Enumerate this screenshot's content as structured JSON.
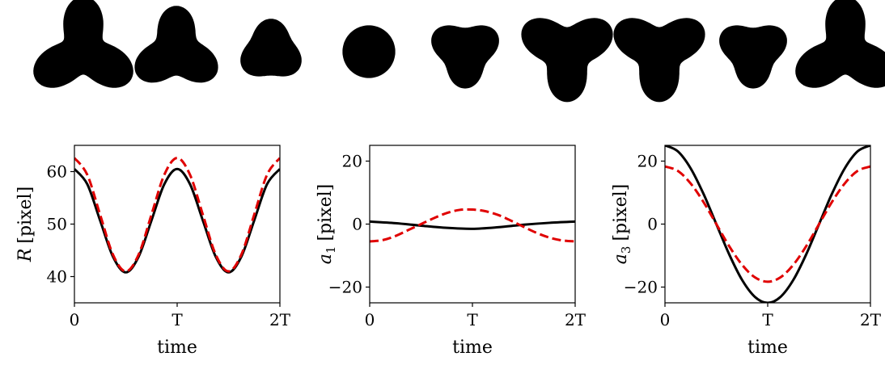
{
  "shapes": {
    "count": 9,
    "color": "#000000",
    "description_values": {
      "R": [
        60.5,
        54,
        44,
        40.8,
        47,
        58,
        58,
        47,
        60.5
      ],
      "a3": [
        25,
        17,
        7,
        0,
        -10,
        -20,
        -20,
        -10,
        25
      ]
    }
  },
  "chart_data": [
    {
      "type": "line",
      "xlabel": "time",
      "ylabel": "R [pixel]",
      "ylabel_symbol": "R",
      "ylabel_unit": "[pixel]",
      "xlim": [
        0,
        2
      ],
      "ylim": [
        35,
        65
      ],
      "xticks": [
        0,
        1,
        2
      ],
      "xtick_labels": [
        "0",
        "T",
        "2T"
      ],
      "yticks": [
        40,
        50,
        60
      ],
      "ytick_labels": [
        "40",
        "50",
        "60"
      ],
      "grid": false,
      "series": [
        {
          "color": "#000000",
          "dash": "solid",
          "x": [
            0,
            0.125,
            0.25,
            0.375,
            0.5,
            0.625,
            0.75,
            0.875,
            1,
            1.125,
            1.25,
            1.375,
            1.5,
            1.625,
            1.75,
            1.875,
            2
          ],
          "values": [
            60.5,
            57.6,
            50.7,
            43.8,
            40.8,
            43.8,
            50.7,
            57.6,
            60.5,
            57.6,
            50.7,
            43.8,
            40.8,
            43.8,
            50.7,
            57.6,
            60.5
          ]
        },
        {
          "color": "#e00000",
          "dash": "dashed",
          "x": [
            0,
            0.125,
            0.25,
            0.375,
            0.5,
            0.625,
            0.75,
            0.875,
            1,
            1.125,
            1.25,
            1.375,
            1.5,
            1.625,
            1.75,
            1.875,
            2
          ],
          "values": [
            62.6,
            59.4,
            51.8,
            44.2,
            41.0,
            44.2,
            51.8,
            59.4,
            62.6,
            59.4,
            51.8,
            44.2,
            41.0,
            44.2,
            51.8,
            59.4,
            62.6
          ]
        }
      ]
    },
    {
      "type": "line",
      "xlabel": "time",
      "ylabel": "a1 [pixel]",
      "ylabel_symbol": "a",
      "ylabel_sub": "1",
      "ylabel_unit": "[pixel]",
      "xlim": [
        0,
        2
      ],
      "ylim": [
        -25,
        25
      ],
      "xticks": [
        0,
        1,
        2
      ],
      "xtick_labels": [
        "0",
        "T",
        "2T"
      ],
      "yticks": [
        -20,
        0,
        20
      ],
      "ytick_labels": [
        "−20",
        "0",
        "20"
      ],
      "grid": false,
      "series": [
        {
          "color": "#000000",
          "dash": "solid",
          "x": [
            0,
            0.25,
            0.5,
            0.75,
            1,
            1.25,
            1.5,
            1.75,
            2
          ],
          "values": [
            0.8,
            0.3,
            -0.5,
            -1.2,
            -1.5,
            -1.0,
            -0.2,
            0.4,
            0.8
          ]
        },
        {
          "color": "#e00000",
          "dash": "dashed",
          "x": [
            0,
            0.125,
            0.25,
            0.375,
            0.5,
            0.625,
            0.75,
            0.875,
            1,
            1.125,
            1.25,
            1.375,
            1.5,
            1.625,
            1.75,
            1.875,
            2
          ],
          "values": [
            -5.5,
            -5.1,
            -3.8,
            -1.9,
            0.0,
            1.9,
            3.5,
            4.5,
            4.6,
            4.1,
            2.9,
            1.1,
            -0.9,
            -2.8,
            -4.3,
            -5.2,
            -5.5
          ]
        }
      ]
    },
    {
      "type": "line",
      "xlabel": "time",
      "ylabel": "a3 [pixel]",
      "ylabel_symbol": "a",
      "ylabel_sub": "3",
      "ylabel_unit": "[pixel]",
      "xlim": [
        0,
        2
      ],
      "ylim": [
        -25,
        25
      ],
      "xticks": [
        0,
        1,
        2
      ],
      "xtick_labels": [
        "0",
        "T",
        "2T"
      ],
      "yticks": [
        -20,
        0,
        20
      ],
      "ytick_labels": [
        "−20",
        "0",
        "20"
      ],
      "grid": false,
      "series": [
        {
          "color": "#000000",
          "dash": "solid",
          "x": [
            0,
            0.125,
            0.25,
            0.375,
            0.5,
            0.625,
            0.75,
            0.875,
            1,
            1.125,
            1.25,
            1.375,
            1.5,
            1.625,
            1.75,
            1.875,
            2
          ],
          "values": [
            25.0,
            23.1,
            17.7,
            9.6,
            0.0,
            -9.6,
            -17.7,
            -23.1,
            -25.0,
            -23.1,
            -17.7,
            -9.6,
            0.0,
            9.6,
            17.7,
            23.1,
            25.0
          ]
        },
        {
          "color": "#e00000",
          "dash": "dashed",
          "x": [
            0,
            0.125,
            0.25,
            0.375,
            0.5,
            0.625,
            0.75,
            0.875,
            1,
            1.125,
            1.25,
            1.375,
            1.5,
            1.625,
            1.75,
            1.875,
            2
          ],
          "values": [
            18.3,
            16.9,
            12.9,
            7.0,
            0.0,
            -7.0,
            -12.9,
            -16.9,
            -18.3,
            -16.9,
            -12.9,
            -7.0,
            0.0,
            7.0,
            12.9,
            16.9,
            18.3
          ]
        }
      ]
    }
  ]
}
